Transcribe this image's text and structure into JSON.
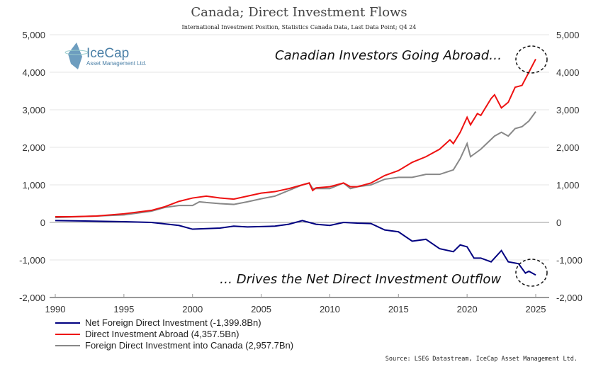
{
  "chart_data": {
    "type": "line",
    "title": "Canada; Direct Investment Flows",
    "subtitle": "International Investment Position, Statistics Canada Data, Last Data Point; Q4 24",
    "xlim": [
      1990,
      2026
    ],
    "ylim": [
      -2000,
      5000
    ],
    "xticks": [
      1990,
      1995,
      2000,
      2005,
      2010,
      2015,
      2020,
      2025
    ],
    "xtick_labels": [
      "1990",
      "1995",
      "2000",
      "2005",
      "2010",
      "2015",
      "2020",
      "2025"
    ],
    "yticks": [
      -2000,
      -1000,
      0,
      1000,
      2000,
      3000,
      4000,
      5000
    ],
    "ytick_labels": [
      "-2,000",
      "-1,000",
      "0",
      "1,000",
      "2,000",
      "3,000",
      "4,000",
      "5,000"
    ],
    "grid": true,
    "legend_position": "bottom-left",
    "annotations": [
      "Canadian Investors Going Abroad…",
      "… Drives the Net Direct Investment Outflow"
    ],
    "source": "Source: LSEG Datastream, IceCap Asset Management Ltd.",
    "logo": {
      "name": "IceCap",
      "tagline": "Asset Management Ltd."
    },
    "series": [
      {
        "name": "Net Foreign Direct Investment (-1,399.8Bn)",
        "color": "#000080",
        "x": [
          1990,
          1995,
          1997,
          1999,
          2000,
          2002,
          2003,
          2004,
          2006,
          2007,
          2008,
          2009,
          2010,
          2011,
          2012,
          2013,
          2014,
          2015,
          2016,
          2017,
          2018,
          2019,
          2019.5,
          2020,
          2020.5,
          2021,
          2021.75,
          2022.5,
          2023,
          2023.75,
          2024.25,
          2024.5,
          2025
        ],
        "y": [
          50,
          20,
          0,
          -80,
          -180,
          -150,
          -100,
          -120,
          -100,
          -50,
          50,
          -50,
          -80,
          0,
          -20,
          -30,
          -200,
          -250,
          -500,
          -450,
          -700,
          -780,
          -600,
          -650,
          -950,
          -950,
          -1050,
          -750,
          -1050,
          -1100,
          -1350,
          -1300,
          -1400
        ]
      },
      {
        "name": "Direct Investment Abroad (4,357.5Bn)",
        "color": "#ee1111",
        "x": [
          1990,
          1991,
          1993,
          1995,
          1997,
          1998,
          1999,
          2000,
          2001,
          2002,
          2003,
          2004,
          2005,
          2006,
          2007,
          2008,
          2008.5,
          2008.75,
          2009,
          2010,
          2011,
          2011.5,
          2012,
          2013,
          2014,
          2015,
          2016,
          2017,
          2018,
          2018.75,
          2019,
          2019.5,
          2020,
          2020.25,
          2020.75,
          2021,
          2021.75,
          2022,
          2022.5,
          2023,
          2023.5,
          2024,
          2024.5,
          2025
        ],
        "y": [
          150,
          150,
          170,
          230,
          320,
          420,
          560,
          650,
          700,
          650,
          620,
          700,
          780,
          820,
          900,
          1000,
          1050,
          850,
          920,
          950,
          1050,
          950,
          950,
          1050,
          1250,
          1380,
          1600,
          1750,
          1950,
          2200,
          2100,
          2400,
          2800,
          2600,
          2900,
          2850,
          3300,
          3400,
          3050,
          3200,
          3600,
          3650,
          4000,
          4350
        ]
      },
      {
        "name": "Foreign Direct Investment into Canada (2,957.7Bn)",
        "color": "#888888",
        "x": [
          1990,
          1993,
          1995,
          1997,
          1998,
          1999,
          2000,
          2000.5,
          2001,
          2002,
          2003,
          2004,
          2005,
          2006,
          2007,
          2008,
          2008.5,
          2008.75,
          2009,
          2010,
          2011,
          2011.5,
          2012,
          2013,
          2014,
          2015,
          2016,
          2017,
          2018,
          2019,
          2019.5,
          2020,
          2020.25,
          2021,
          2022,
          2022.5,
          2023,
          2023.5,
          2024,
          2024.5,
          2025
        ],
        "y": [
          130,
          170,
          200,
          300,
          400,
          450,
          450,
          550,
          530,
          500,
          480,
          550,
          630,
          700,
          850,
          1000,
          1050,
          900,
          900,
          900,
          1050,
          900,
          950,
          1000,
          1150,
          1200,
          1200,
          1280,
          1280,
          1400,
          1700,
          2100,
          1750,
          1950,
          2300,
          2400,
          2300,
          2500,
          2550,
          2700,
          2950
        ]
      }
    ]
  }
}
